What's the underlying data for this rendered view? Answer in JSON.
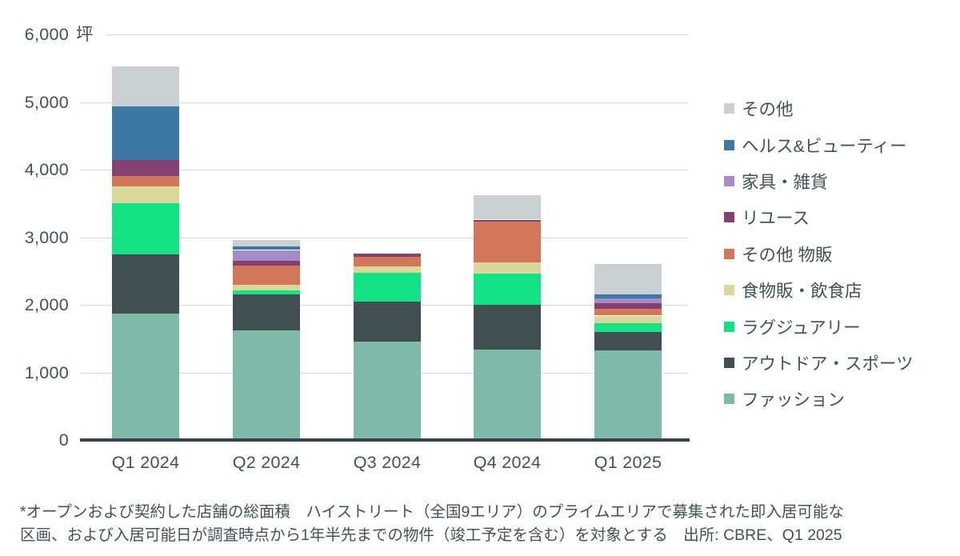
{
  "colors": {
    "background": "#ffffff",
    "text": "#435254",
    "grid": "#d8dbdd",
    "axis": "#37424a"
  },
  "chart_data": {
    "type": "bar",
    "stacked": true,
    "title": "",
    "xlabel": "",
    "ylabel": "",
    "unit_label": "坪",
    "ylim": [
      0,
      6000
    ],
    "grid": true,
    "legend_position": "right",
    "yticks": [
      "0",
      "1,000",
      "2,000",
      "3,000",
      "4,000",
      "5,000",
      "6,000"
    ],
    "categories": [
      "Q1 2024",
      "Q2 2024",
      "Q3 2024",
      "Q4 2024",
      "Q1 2025"
    ],
    "series": [
      {
        "name": "ファッション",
        "color": "#7fbaa9",
        "values": [
          1870,
          1620,
          1460,
          1340,
          1330
        ]
      },
      {
        "name": "アウトドア・スポーツ",
        "color": "#414e52",
        "values": [
          880,
          530,
          590,
          660,
          270
        ]
      },
      {
        "name": "ラグジュアリー",
        "color": "#15e287",
        "values": [
          750,
          60,
          420,
          460,
          130
        ]
      },
      {
        "name": "食物販・飲食店",
        "color": "#d9d79a",
        "values": [
          250,
          90,
          100,
          170,
          110
        ]
      },
      {
        "name": "その他 物販",
        "color": "#d3775a",
        "values": [
          160,
          280,
          140,
          600,
          100
        ]
      },
      {
        "name": "リユース",
        "color": "#84406e",
        "values": [
          230,
          70,
          50,
          30,
          80
        ]
      },
      {
        "name": "家具・雑貨",
        "color": "#a68cc6",
        "values": [
          0,
          160,
          0,
          0,
          70
        ]
      },
      {
        "name": "ヘルス&ビューティー",
        "color": "#3e79a6",
        "values": [
          790,
          50,
          0,
          0,
          70
        ]
      },
      {
        "name": "その他",
        "color": "#cbd0d2",
        "values": [
          600,
          100,
          0,
          360,
          450
        ]
      }
    ]
  },
  "footnote": {
    "line1": "*オープンおよび契約した店舗の総面積　ハイストリート（全国9エリア）のプライムエリアで募集された即入居可能な",
    "line2": "区画、および入居可能日が調査時点から1年半先までの物件（竣工予定を含む）を対象とする　出所: CBRE、Q1 2025"
  }
}
